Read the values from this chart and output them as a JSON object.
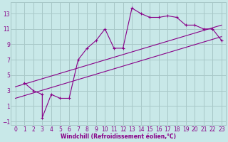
{
  "xlabel": "Windchill (Refroidissement éolien,°C)",
  "bg_color": "#c8e8e8",
  "grid_color": "#a8c8c8",
  "line_color": "#880088",
  "line1_x": [
    1,
    2,
    3,
    3,
    4,
    5,
    6,
    7,
    8,
    9,
    10,
    11,
    12,
    13,
    14,
    15,
    16,
    17,
    18,
    19,
    20,
    21,
    22,
    23
  ],
  "line1_y": [
    4.0,
    3.0,
    2.5,
    -0.5,
    2.5,
    2.0,
    2.0,
    7.0,
    8.5,
    9.5,
    11.0,
    8.5,
    8.5,
    13.7,
    13.0,
    12.5,
    12.5,
    12.7,
    12.5,
    11.5,
    11.5,
    11.0,
    11.0,
    9.5
  ],
  "line2_x": [
    0,
    23
  ],
  "line2_y": [
    2.0,
    10.0
  ],
  "line3_x": [
    0,
    23
  ],
  "line3_y": [
    3.5,
    11.5
  ],
  "xlim": [
    -0.5,
    23.5
  ],
  "ylim": [
    -1.5,
    14.5
  ],
  "xticks": [
    0,
    1,
    2,
    3,
    4,
    5,
    6,
    7,
    8,
    9,
    10,
    11,
    12,
    13,
    14,
    15,
    16,
    17,
    18,
    19,
    20,
    21,
    22,
    23
  ],
  "yticks": [
    -1,
    1,
    3,
    5,
    7,
    9,
    11,
    13
  ],
  "xlabel_fontsize": 5.5,
  "tick_fontsize": 5.5
}
